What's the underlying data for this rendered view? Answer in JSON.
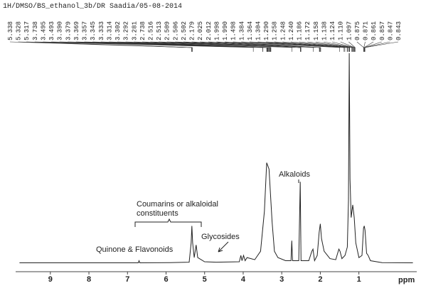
{
  "chart_data": {
    "type": "line",
    "title": "1H/DMSO/BS_ethanol_3b/DR Saadia/05-08-2014",
    "x_label": "ppm",
    "color": "#222222",
    "xlim": [
      9.9,
      -0.5
    ],
    "xticks": [
      9,
      8,
      7,
      6,
      5,
      4,
      3,
      2,
      1
    ],
    "ylim": [
      0,
      100
    ],
    "x": [
      9.8,
      7.0,
      6.72,
      6.7,
      6.68,
      5.9,
      5.4,
      5.35,
      5.33,
      5.31,
      5.27,
      5.22,
      5.18,
      5.0,
      4.7,
      4.1,
      4.06,
      4.03,
      3.99,
      3.95,
      3.9,
      3.7,
      3.55,
      3.45,
      3.39,
      3.33,
      3.25,
      3.19,
      3.1,
      2.9,
      2.76,
      2.74,
      2.72,
      2.56,
      2.52,
      2.5,
      2.3,
      2.22,
      2.19,
      2.15,
      2.08,
      2.03,
      2.0,
      1.97,
      1.9,
      1.75,
      1.6,
      1.52,
      1.49,
      1.44,
      1.36,
      1.3,
      1.27,
      1.25,
      1.23,
      1.2,
      1.16,
      1.12,
      1.08,
      1.0,
      0.92,
      0.88,
      0.86,
      0.84,
      0.8,
      0.76,
      0.7,
      0.4,
      -0.4
    ],
    "values": [
      0.5,
      0.5,
      0.5,
      1.5,
      0.5,
      0.6,
      0.8,
      10,
      18,
      10,
      3,
      9,
      3,
      1,
      0.8,
      1,
      4,
      1.5,
      4,
      1.5,
      3,
      2,
      6,
      25,
      48,
      45,
      20,
      6,
      3,
      1.5,
      1.5,
      11,
      1.5,
      1.5,
      39,
      1.5,
      1.5,
      6,
      7,
      1.5,
      4,
      15,
      19,
      12,
      6,
      2.5,
      2,
      7,
      6,
      2.5,
      4,
      8,
      30,
      100,
      40,
      22,
      28,
      22,
      10,
      3,
      4,
      17,
      18,
      16,
      5,
      4,
      1.5,
      0.6,
      0.5
    ],
    "peak_labels": [
      "5.338",
      "5.328",
      "5.317",
      "3.738",
      "3.495",
      "3.493",
      "3.390",
      "3.379",
      "3.369",
      "3.357",
      "3.345",
      "3.333",
      "3.314",
      "3.302",
      "3.292",
      "3.281",
      "2.738",
      "2.516",
      "2.513",
      "2.509",
      "2.506",
      "2.502",
      "2.179",
      "2.025",
      "2.012",
      "1.998",
      "1.990",
      "1.498",
      "1.384",
      "1.364",
      "1.304",
      "1.290",
      "1.258",
      "1.248",
      "1.240",
      "1.186",
      "1.172",
      "1.158",
      "1.138",
      "1.124",
      "1.110",
      "1.097",
      "0.875",
      "0.871",
      "0.861",
      "0.857",
      "0.847",
      "0.843"
    ],
    "annotations": [
      "Quinone & Flavonoids",
      "Coumarins or alkaloidal",
      "constituents",
      "Glycosides",
      "Alkaloids"
    ]
  }
}
